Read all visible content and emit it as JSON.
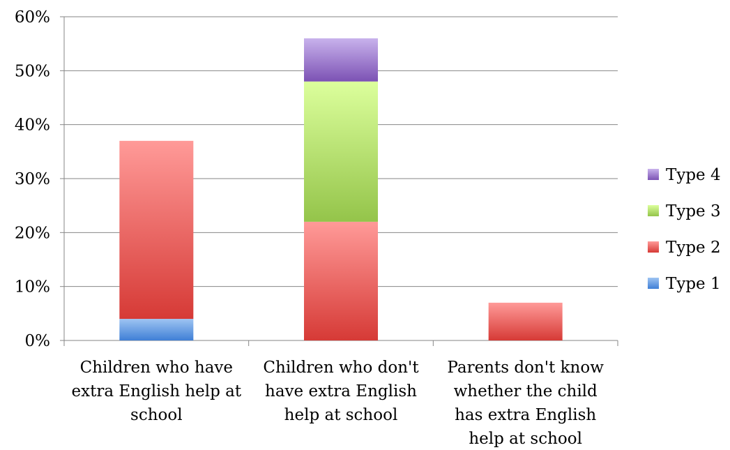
{
  "chart_data": {
    "type": "bar",
    "stacked": true,
    "categories": [
      [
        "Children who have",
        "extra English help at",
        "school"
      ],
      [
        "Children who don't",
        "have extra English",
        "help at school"
      ],
      [
        "Parents don't know",
        "whether the child",
        "has extra English",
        "help at school"
      ]
    ],
    "series": [
      {
        "name": "Type 1",
        "values": [
          4,
          0,
          0
        ],
        "color_top": "#9ec4f2",
        "color_bottom": "#3f7fd6"
      },
      {
        "name": "Type 2",
        "values": [
          33,
          22,
          7
        ],
        "color_top": "#ff9a98",
        "color_bottom": "#d63a36"
      },
      {
        "name": "Type 3",
        "values": [
          0,
          26,
          0
        ],
        "color_top": "#dcff9c",
        "color_bottom": "#94c44a"
      },
      {
        "name": "Type 4",
        "values": [
          0,
          8,
          0
        ],
        "color_top": "#c8b2ec",
        "color_bottom": "#7c52b4"
      }
    ],
    "y_ticks": [
      "0%",
      "10%",
      "20%",
      "30%",
      "40%",
      "50%",
      "60%"
    ],
    "ylim": [
      0,
      60
    ],
    "grid": true,
    "legend_position": "right"
  }
}
